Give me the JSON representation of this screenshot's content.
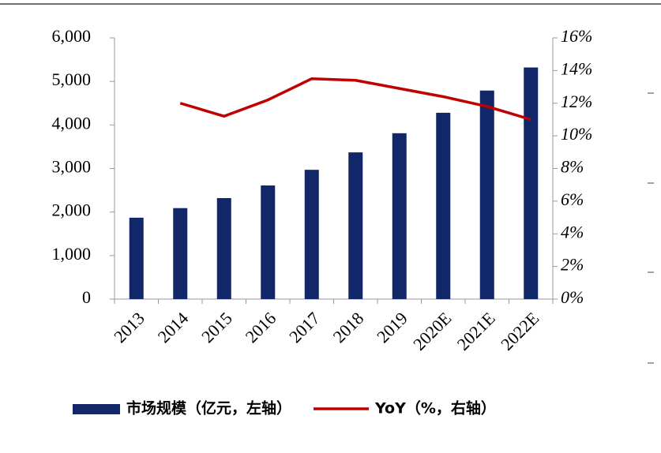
{
  "chart_data": {
    "type": "bar-line",
    "categories": [
      "2013",
      "2014",
      "2015",
      "2016",
      "2017",
      "2018",
      "2019",
      "2020E",
      "2021E",
      "2022E"
    ],
    "series": [
      {
        "name": "市场规模（亿元，左轴）",
        "type": "bar",
        "color": "#12266a",
        "values": [
          1870,
          2090,
          2320,
          2610,
          2970,
          3370,
          3810,
          4280,
          4790,
          5320
        ]
      },
      {
        "name": "YoY（%，右轴）",
        "type": "line",
        "axis": "y2",
        "color": "#c00000",
        "values": [
          null,
          12.0,
          11.2,
          12.2,
          13.5,
          13.4,
          12.9,
          12.4,
          11.8,
          11.0
        ]
      }
    ],
    "ylim": [
      0,
      6000
    ],
    "yticks": [
      {
        "value": 0,
        "label": "0"
      },
      {
        "value": 1000,
        "label": "1,000"
      },
      {
        "value": 2000,
        "label": "2,000"
      },
      {
        "value": 3000,
        "label": "3,000"
      },
      {
        "value": 4000,
        "label": "4,000"
      },
      {
        "value": 5000,
        "label": "5,000"
      },
      {
        "value": 6000,
        "label": "6,000"
      }
    ],
    "y2lim": [
      0,
      16
    ],
    "y2ticks": [
      {
        "value": 0,
        "label": "0%"
      },
      {
        "value": 2,
        "label": "2%"
      },
      {
        "value": 4,
        "label": "4%"
      },
      {
        "value": 6,
        "label": "6%"
      },
      {
        "value": 8,
        "label": "8%"
      },
      {
        "value": 10,
        "label": "10%"
      },
      {
        "value": 12,
        "label": "12%"
      },
      {
        "value": 14,
        "label": "14%"
      },
      {
        "value": 16,
        "label": "16%"
      }
    ],
    "grid": false,
    "legend": "bottom"
  }
}
